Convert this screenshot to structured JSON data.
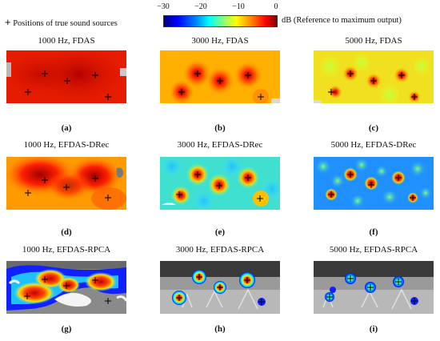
{
  "legend": {
    "marker_symbol": "+",
    "marker_label": "Positions of true sound sources",
    "colorbar_ticks": [
      "−30",
      "−20",
      "−10",
      "0"
    ],
    "colorbar_unit": "dB",
    "colorbar_caption": "(Reference to maximum output)"
  },
  "panels": [
    {
      "title": "1000 Hz, FDAS",
      "letter": "(a)"
    },
    {
      "title": "3000 Hz, FDAS",
      "letter": "(b)"
    },
    {
      "title": "5000 Hz, FDAS",
      "letter": "(c)"
    },
    {
      "title": "1000 Hz, EFDAS-DRec",
      "letter": "(d)"
    },
    {
      "title": "3000 Hz, EFDAS-DRec",
      "letter": "(e)"
    },
    {
      "title": "5000 Hz, EFDAS-DRec",
      "letter": "(f)"
    },
    {
      "title": "1000 Hz, EFDAS-RPCA",
      "letter": "(g)"
    },
    {
      "title": "3000 Hz, EFDAS-RPCA",
      "letter": "(h)"
    },
    {
      "title": "5000 Hz, EFDAS-RPCA",
      "letter": "(i)"
    }
  ],
  "colors": {
    "jet_dark_red": "#7f0000",
    "jet_red": "#ff0000",
    "jet_orange": "#ff8000",
    "jet_yellow": "#ffff00",
    "jet_cyan": "#00ffff",
    "jet_blue": "#0000ff",
    "photo_gray": "#8a8a8a"
  }
}
